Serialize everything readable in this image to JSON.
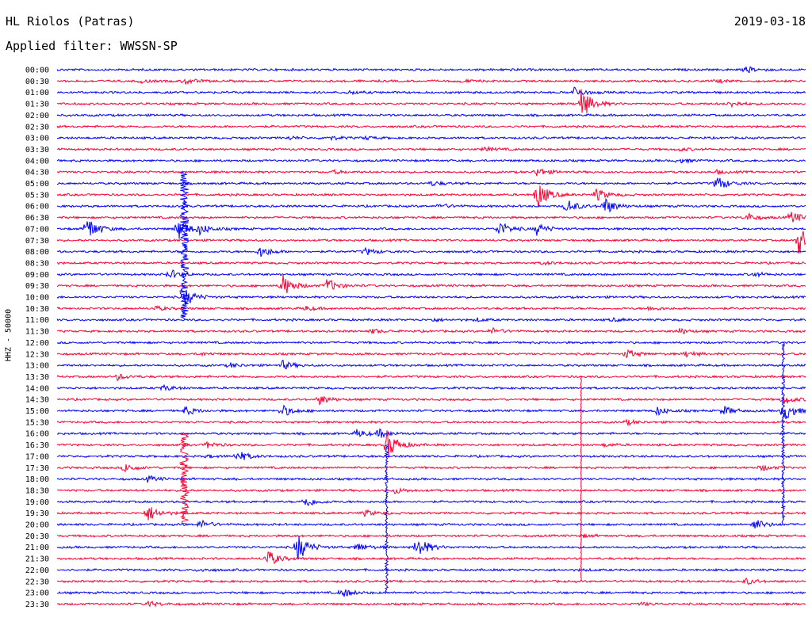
{
  "header": {
    "station": "HL Riolos (Patras)",
    "date": "2019-03-18",
    "filter_label": "Applied filter: WWSSN-SP"
  },
  "axis": {
    "channel_label": "HHZ - 50000"
  },
  "chart_data": {
    "type": "line",
    "title": "HL Riolos (Patras)",
    "subtitle": "Applied filter: WWSSN-SP",
    "ylabel": "HHZ - 50000",
    "series_colors": [
      "#0000ff",
      "#ff0033"
    ],
    "grid": false,
    "legend": "none",
    "rows": [
      {
        "label": "00:00",
        "events": [
          [
            0.6,
            0.05
          ],
          [
            0.92,
            0.2
          ]
        ]
      },
      {
        "label": "00:30",
        "events": [
          [
            0.11,
            0.1
          ],
          [
            0.17,
            0.2
          ],
          [
            0.54,
            0.1
          ],
          [
            0.88,
            0.1
          ]
        ]
      },
      {
        "label": "01:00",
        "events": [
          [
            0.39,
            0.1
          ],
          [
            0.69,
            0.35
          ]
        ]
      },
      {
        "label": "01:30",
        "events": [
          [
            0.7,
            1.0
          ],
          [
            0.9,
            0.2
          ]
        ]
      },
      {
        "label": "02:00",
        "events": []
      },
      {
        "label": "02:30",
        "events": []
      },
      {
        "label": "03:00",
        "events": [
          [
            0.31,
            0.1
          ],
          [
            0.36,
            0.15
          ],
          [
            0.41,
            0.1
          ]
        ]
      },
      {
        "label": "03:30",
        "events": [
          [
            0.57,
            0.15
          ],
          [
            0.83,
            0.1
          ]
        ]
      },
      {
        "label": "04:00",
        "events": [
          [
            0.83,
            0.15
          ]
        ]
      },
      {
        "label": "04:30",
        "events": [
          [
            0.37,
            0.1
          ],
          [
            0.64,
            0.3
          ],
          [
            0.88,
            0.1
          ]
        ]
      },
      {
        "label": "05:00",
        "events": [
          [
            0.5,
            0.15
          ],
          [
            0.88,
            0.55
          ]
        ]
      },
      {
        "label": "05:30",
        "events": [
          [
            0.64,
            1.0
          ],
          [
            0.72,
            0.4
          ]
        ]
      },
      {
        "label": "06:00",
        "events": [
          [
            0.51,
            0.15
          ],
          [
            0.68,
            0.5
          ],
          [
            0.73,
            0.6
          ]
        ]
      },
      {
        "label": "06:30",
        "events": [
          [
            0.92,
            0.3
          ],
          [
            0.98,
            0.4
          ]
        ]
      },
      {
        "label": "07:00",
        "events": [
          [
            0.04,
            0.8
          ],
          [
            0.16,
            0.8
          ],
          [
            0.19,
            0.3
          ],
          [
            0.59,
            0.5
          ],
          [
            0.64,
            0.4
          ]
        ]
      },
      {
        "label": "07:30",
        "events": [
          [
            0.99,
            1.0
          ]
        ]
      },
      {
        "label": "08:00",
        "events": [
          [
            0.27,
            0.4
          ],
          [
            0.41,
            0.25
          ]
        ]
      },
      {
        "label": "08:30",
        "events": [
          [
            0.65,
            0.1
          ]
        ]
      },
      {
        "label": "09:00",
        "events": [
          [
            0.15,
            0.3
          ],
          [
            0.93,
            0.15
          ]
        ]
      },
      {
        "label": "09:30",
        "events": [
          [
            0.3,
            0.8
          ],
          [
            0.36,
            0.45
          ]
        ]
      },
      {
        "label": "10:00",
        "events": [
          [
            0.17,
            0.6
          ]
        ]
      },
      {
        "label": "10:30",
        "events": [
          [
            0.13,
            0.15
          ],
          [
            0.33,
            0.15
          ],
          [
            0.79,
            0.15
          ]
        ]
      },
      {
        "label": "11:00",
        "events": [
          [
            0.5,
            0.1
          ],
          [
            0.56,
            0.1
          ],
          [
            0.74,
            0.1
          ]
        ]
      },
      {
        "label": "11:30",
        "events": [
          [
            0.42,
            0.15
          ],
          [
            0.58,
            0.2
          ],
          [
            0.83,
            0.2
          ]
        ]
      },
      {
        "label": "12:00",
        "events": []
      },
      {
        "label": "12:30",
        "events": [
          [
            0.19,
            0.1
          ],
          [
            0.76,
            0.3
          ],
          [
            0.84,
            0.2
          ]
        ]
      },
      {
        "label": "13:00",
        "events": [
          [
            0.23,
            0.15
          ],
          [
            0.3,
            0.3
          ]
        ]
      },
      {
        "label": "13:30",
        "events": [
          [
            0.08,
            0.2
          ]
        ]
      },
      {
        "label": "14:00",
        "events": [
          [
            0.14,
            0.2
          ]
        ]
      },
      {
        "label": "14:30",
        "events": [
          [
            0.35,
            0.3
          ],
          [
            0.97,
            0.3
          ]
        ]
      },
      {
        "label": "15:00",
        "events": [
          [
            0.17,
            0.3
          ],
          [
            0.3,
            0.4
          ],
          [
            0.8,
            0.3
          ],
          [
            0.89,
            0.3
          ],
          [
            0.97,
            0.7
          ]
        ]
      },
      {
        "label": "15:30",
        "events": [
          [
            0.76,
            0.15
          ]
        ]
      },
      {
        "label": "16:00",
        "events": [
          [
            0.4,
            0.25
          ],
          [
            0.43,
            0.3
          ]
        ]
      },
      {
        "label": "16:30",
        "events": [
          [
            0.2,
            0.2
          ],
          [
            0.44,
            1.0
          ],
          [
            0.73,
            0.1
          ]
        ]
      },
      {
        "label": "17:00",
        "events": [
          [
            0.24,
            0.4
          ],
          [
            0.2,
            0.1
          ]
        ]
      },
      {
        "label": "17:30",
        "events": [
          [
            0.09,
            0.3
          ],
          [
            0.94,
            0.2
          ]
        ]
      },
      {
        "label": "18:00",
        "events": [
          [
            0.12,
            0.2
          ]
        ]
      },
      {
        "label": "18:30",
        "events": [
          [
            0.45,
            0.2
          ]
        ]
      },
      {
        "label": "19:00",
        "events": [
          [
            0.33,
            0.4
          ]
        ]
      },
      {
        "label": "19:30",
        "events": [
          [
            0.12,
            0.6
          ],
          [
            0.41,
            0.2
          ]
        ]
      },
      {
        "label": "20:00",
        "events": [
          [
            0.19,
            0.3
          ],
          [
            0.93,
            0.4
          ]
        ]
      },
      {
        "label": "20:30",
        "events": [
          [
            0.7,
            0.1
          ]
        ]
      },
      {
        "label": "21:00",
        "events": [
          [
            0.32,
            1.0
          ],
          [
            0.4,
            0.3
          ],
          [
            0.48,
            0.8
          ]
        ]
      },
      {
        "label": "21:30",
        "events": [
          [
            0.28,
            0.6
          ]
        ]
      },
      {
        "label": "22:00",
        "events": [
          [
            0.19,
            0.1
          ],
          [
            0.7,
            0.05
          ]
        ]
      },
      {
        "label": "22:30",
        "events": [
          [
            0.92,
            0.2
          ]
        ]
      },
      {
        "label": "23:00",
        "events": [
          [
            0.38,
            0.3
          ]
        ]
      },
      {
        "label": "23:30",
        "events": [
          [
            0.12,
            0.2
          ],
          [
            0.78,
            0.1
          ]
        ]
      }
    ],
    "teleseisms": [
      {
        "rows": [
          9,
          22
        ],
        "x": 0.17,
        "amp": 0.9
      },
      {
        "rows": [
          32,
          40
        ],
        "x": 0.17,
        "amp": 0.9
      },
      {
        "rows": [
          33,
          46
        ],
        "x": 0.44,
        "amp": 0.3
      },
      {
        "rows": [
          27,
          45
        ],
        "x": 0.7,
        "amp": 0.08
      },
      {
        "rows": [
          24,
          40
        ],
        "x": 0.97,
        "amp": 0.3
      }
    ]
  }
}
